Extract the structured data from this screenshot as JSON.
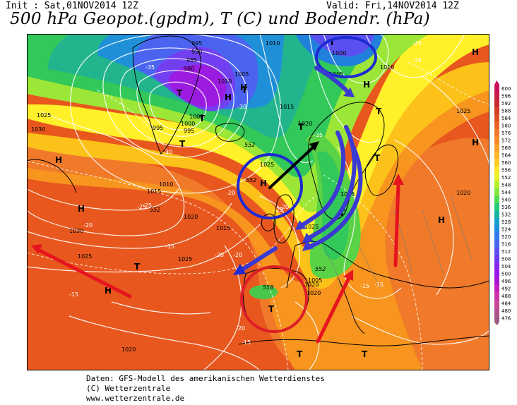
{
  "header": {
    "init": "Init : Sat,01NOV2014 12Z",
    "valid": "Valid: Fri,14NOV2014 12Z",
    "title": "500 hPa Geopot.(gpdm), T (C) und Bodendr. (hPa)"
  },
  "footer": {
    "line1": "Daten: GFS-Modell des amerikanischen Wetterdienstes",
    "line2": "(C) Wetterzentrale",
    "line3": "www.wetterzentrale.de"
  },
  "legend": {
    "levels": [
      "600",
      "596",
      "592",
      "588",
      "584",
      "580",
      "576",
      "572",
      "568",
      "564",
      "560",
      "556",
      "552",
      "548",
      "544",
      "540",
      "536",
      "532",
      "528",
      "524",
      "520",
      "516",
      "512",
      "508",
      "504",
      "500",
      "496",
      "492",
      "488",
      "484",
      "480",
      "476"
    ],
    "colors": [
      "#c8145a",
      "#c81e46",
      "#c82832",
      "#d23c28",
      "#dc5028",
      "#e66428",
      "#f07828",
      "#f58c28",
      "#fa9f28",
      "#ffb428",
      "#ffcc28",
      "#ffe628",
      "#e6f028",
      "#b4f028",
      "#82e63c",
      "#50dc50",
      "#28c878",
      "#14b4a0",
      "#14a0c8",
      "#1e8cdc",
      "#3278f0",
      "#4664f0",
      "#5a50f0",
      "#6e3cf0",
      "#8228f0",
      "#9614e6",
      "#aa14d2",
      "#be1ebe",
      "#c832aa",
      "#c84696",
      "#b4508c",
      "#a05a82"
    ]
  },
  "map": {
    "pressure_labels": [
      "995",
      "990",
      "985",
      "980",
      "1000",
      "995",
      "1000",
      "995",
      "1005",
      "1010",
      "1010",
      "1015",
      "1010",
      "1000",
      "1005",
      "1010",
      "1015",
      "1020",
      "1025",
      "1030",
      "1025",
      "1030",
      "1025",
      "1025",
      "1020",
      "1020",
      "1025",
      "1020",
      "1025",
      "1020",
      "1005",
      "1005",
      "1020",
      "1015"
    ],
    "temp_labels": [
      "-35",
      "-30",
      "-25",
      "-30",
      "-25",
      "-35",
      "-25",
      "-20",
      "-25",
      "-20",
      "-15",
      "-15",
      "-20",
      "-15",
      "-20",
      "-15",
      "-25",
      "-20",
      "-15",
      "-20"
    ],
    "height_labels": [
      "552",
      "552",
      "552",
      "552",
      "558"
    ],
    "highs": [
      "H",
      "H",
      "H",
      "H",
      "H",
      "H",
      "H",
      "H",
      "H",
      "H"
    ],
    "lows": [
      "T",
      "T",
      "T",
      "T",
      "T",
      "T",
      "T",
      "T",
      "T",
      "T",
      "T",
      "T",
      "T"
    ]
  }
}
